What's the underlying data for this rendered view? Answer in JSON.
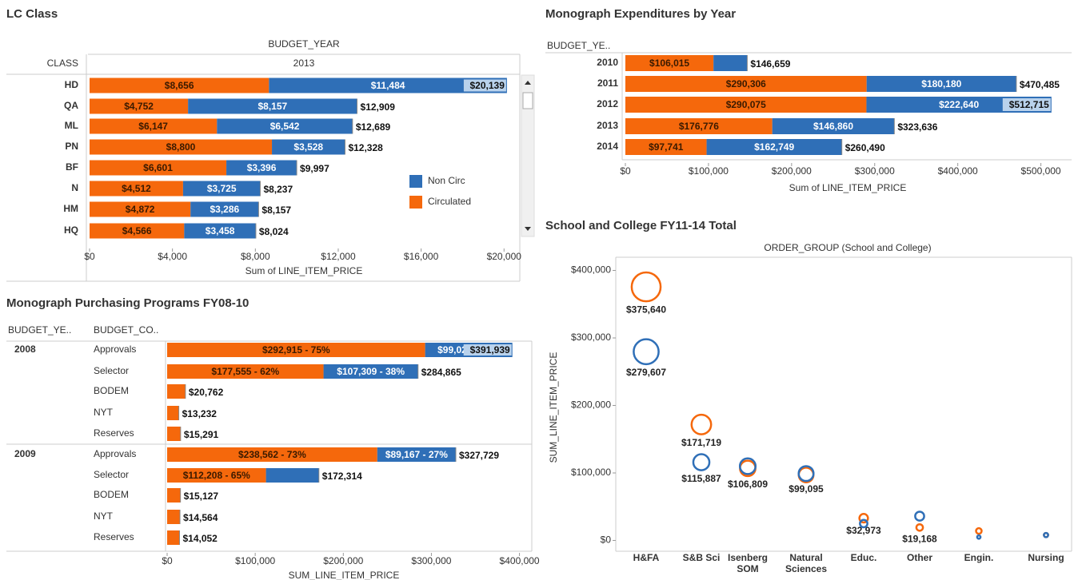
{
  "chart_data": [
    {
      "type": "hbar-stacked",
      "title": "LC Class",
      "header_top": "BUDGET_YEAR",
      "header_sub": "2013",
      "header_row": "CLASS",
      "categories": [
        "HD",
        "QA",
        "ML",
        "PN",
        "BF",
        "N",
        "HM",
        "HQ"
      ],
      "series": [
        {
          "name": "Circulated",
          "color": "#f5680c",
          "values": [
            8656,
            4752,
            6147,
            8800,
            6601,
            4512,
            4872,
            4566
          ],
          "value_labels": [
            "$8,656",
            "$4,752",
            "$6,147",
            "$8,800",
            "$6,601",
            "$4,512",
            "$4,872",
            "$4,566"
          ]
        },
        {
          "name": "Non Circ",
          "color": "#2f6fb7",
          "values": [
            11484,
            8157,
            6542,
            3528,
            3396,
            3725,
            3286,
            3458
          ],
          "value_labels": [
            "$11,484",
            "$8,157",
            "$6,542",
            "$3,528",
            "$3,396",
            "$3,725",
            "$3,286",
            "$3,458"
          ]
        }
      ],
      "totals": [
        20139,
        12909,
        12689,
        12328,
        9997,
        8237,
        8157,
        8024
      ],
      "total_labels": [
        "$20,139",
        "$12,909",
        "$12,689",
        "$12,328",
        "$9,997",
        "$8,237",
        "$8,157",
        "$8,024"
      ],
      "x_label": "Sum of LINE_ITEM_PRICE",
      "xlim": [
        0,
        20800
      ],
      "xticks": [
        {
          "value": 0,
          "label": "$0"
        },
        {
          "value": 4000,
          "label": "$4,000"
        },
        {
          "value": 8000,
          "label": "$8,000"
        },
        {
          "value": 12000,
          "label": "$12,000"
        },
        {
          "value": 16000,
          "label": "$16,000"
        },
        {
          "value": 20000,
          "label": "$20,000"
        }
      ],
      "legend": "right"
    },
    {
      "type": "hbar-stacked",
      "title": "Monograph Expenditures by Year",
      "header_row": "BUDGET_YE..",
      "categories": [
        "2010",
        "2011",
        "2012",
        "2013",
        "2014"
      ],
      "series": [
        {
          "color": "#f5680c",
          "values": [
            106015,
            290306,
            290075,
            176776,
            97741
          ],
          "value_labels": [
            "$106,015",
            "$290,306",
            "$290,075",
            "$176,776",
            "$97,741"
          ]
        },
        {
          "color": "#2f6fb7",
          "values": [
            40644,
            180180,
            222640,
            146860,
            162749
          ],
          "value_labels": [
            null,
            "$180,180",
            "$222,640",
            "$146,860",
            "$162,749"
          ]
        }
      ],
      "totals": [
        146659,
        470485,
        512715,
        323636,
        260490
      ],
      "total_labels": [
        "$146,659",
        "$470,485",
        "$512,715",
        "$323,636",
        "$260,490"
      ],
      "x_label": "Sum of LINE_ITEM_PRICE",
      "xlim": [
        0,
        536000
      ],
      "xticks": [
        {
          "value": 0,
          "label": "$0"
        },
        {
          "value": 100000,
          "label": "$100,000"
        },
        {
          "value": 200000,
          "label": "$200,000"
        },
        {
          "value": 300000,
          "label": "$300,000"
        },
        {
          "value": 400000,
          "label": "$400,000"
        },
        {
          "value": 500000,
          "label": "$500,000"
        }
      ]
    },
    {
      "type": "hbar-stacked",
      "title": "Monograph Purchasing Programs FY08-10",
      "header_row": "BUDGET_YE..",
      "header_cat": "BUDGET_CO..",
      "row_group": [
        "2008",
        null,
        null,
        null,
        null,
        "2009",
        null,
        null,
        null,
        null
      ],
      "categories": [
        "Approvals",
        "Selector",
        "BODEM",
        "NYT",
        "Reserves",
        "Approvals",
        "Selector",
        "BODEM",
        "NYT",
        "Reserves"
      ],
      "series": [
        {
          "color": "#f5680c",
          "values": [
            292915,
            177555,
            20762,
            13232,
            15291,
            238562,
            112208,
            15127,
            14564,
            14052
          ],
          "value_labels": [
            "$292,915 -  75%",
            "$177,555 -  62%",
            null,
            null,
            null,
            "$238,562 -  73%",
            "$112,208 -  65%",
            null,
            null,
            null
          ]
        },
        {
          "color": "#2f6fb7",
          "values": [
            99024,
            107309,
            null,
            null,
            null,
            89167,
            60106,
            null,
            null,
            null
          ],
          "value_labels": [
            "$99,024 -  25%",
            "$107,309 -  38%",
            null,
            null,
            null,
            "$89,167 -  27%",
            null,
            null,
            null,
            null
          ]
        }
      ],
      "totals": [
        391939,
        284865,
        20762,
        13232,
        15291,
        327729,
        172314,
        15127,
        14564,
        14052
      ],
      "total_labels": [
        "$391,939",
        "$284,865",
        "$20,762",
        "$13,232",
        "$15,291",
        "$327,729",
        "$172,314",
        "$15,127",
        "$14,564",
        "$14,052"
      ],
      "x_label": "SUM_LINE_ITEM_PRICE",
      "xlim": [
        0,
        414000
      ],
      "xticks": [
        {
          "value": 0,
          "label": "$0"
        },
        {
          "value": 100000,
          "label": "$100,000"
        },
        {
          "value": 200000,
          "label": "$200,000"
        },
        {
          "value": 300000,
          "label": "$300,000"
        },
        {
          "value": 400000,
          "label": "$400,000"
        }
      ]
    },
    {
      "type": "bubble",
      "title": "School and College FY11-14 Total",
      "header_top": "ORDER_GROUP (School and College)",
      "categories": [
        "H&FA",
        "S&B Sci",
        "Isenberg SOM",
        "Natural Sciences",
        "Educ.",
        "Other",
        "Engin.",
        "Nursing"
      ],
      "series": [
        {
          "color": "#f5680c",
          "values": [
            375640,
            171719,
            106809,
            97000,
            32973,
            19168,
            14000,
            8000
          ],
          "value_labels": [
            "$375,640",
            "$171,719",
            "$106,809",
            null,
            "$32,973",
            "$19,168",
            null,
            null
          ]
        },
        {
          "color": "#2f6fb7",
          "values": [
            279607,
            115887,
            110000,
            99095,
            25000,
            36000,
            5000,
            8000
          ],
          "value_labels": [
            "$279,607",
            "$115,887",
            null,
            "$99,095",
            null,
            null,
            null,
            null
          ]
        }
      ],
      "y_label": "SUM_LINE_ITEM_PRICE",
      "ylim": [
        -16000,
        416000
      ],
      "yticks": [
        {
          "value": 0,
          "label": "$0"
        },
        {
          "value": 100000,
          "label": "$100,000"
        },
        {
          "value": 200000,
          "label": "$200,000"
        },
        {
          "value": 300000,
          "label": "$300,000"
        },
        {
          "value": 400000,
          "label": "$400,000"
        }
      ]
    }
  ]
}
